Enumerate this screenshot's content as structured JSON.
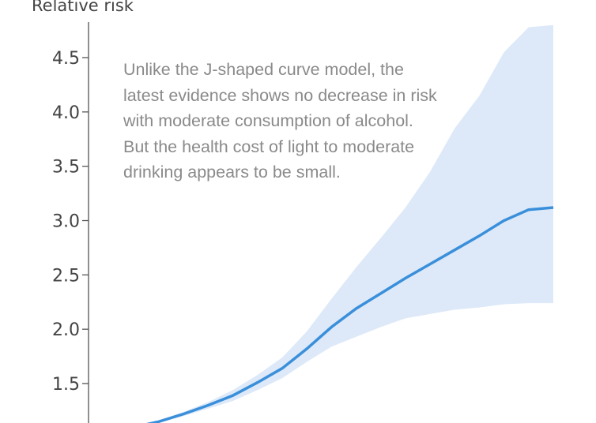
{
  "chart_data": {
    "type": "line",
    "ylabel": "Relative risk",
    "xlabel": "",
    "ylim": [
      1.0,
      4.85
    ],
    "yticks": [
      "1.5",
      "2.0",
      "2.5",
      "3.0",
      "3.5",
      "4.0",
      "4.5"
    ],
    "x": [
      1,
      2,
      3,
      4,
      5,
      6,
      7,
      8,
      9,
      10,
      11,
      12,
      13,
      14,
      15,
      16,
      17,
      18
    ],
    "series": [
      {
        "role": "estimate",
        "values": [
          1.1,
          1.15,
          1.22,
          1.3,
          1.39,
          1.51,
          1.64,
          1.82,
          2.02,
          2.19,
          2.33,
          2.47,
          2.6,
          2.73,
          2.86,
          3.0,
          3.1,
          3.12
        ]
      },
      {
        "role": "upper",
        "values": [
          1.1,
          1.16,
          1.24,
          1.33,
          1.44,
          1.58,
          1.74,
          1.98,
          2.28,
          2.57,
          2.84,
          3.12,
          3.45,
          3.85,
          4.15,
          4.55,
          4.78,
          4.8
        ]
      },
      {
        "role": "lower",
        "values": [
          1.1,
          1.14,
          1.2,
          1.27,
          1.34,
          1.44,
          1.55,
          1.7,
          1.84,
          1.93,
          2.02,
          2.1,
          2.14,
          2.18,
          2.2,
          2.23,
          2.24,
          2.24
        ]
      }
    ],
    "line_color": "#3a8fdb",
    "band_color": "#dde9f8",
    "annotation": [
      "Unlike the J-shaped curve model, the",
      "latest evidence shows no decrease in risk",
      "with moderate consumption of alcohol.",
      "But the health cost of light to moderate",
      "drinking appears to be small."
    ]
  }
}
